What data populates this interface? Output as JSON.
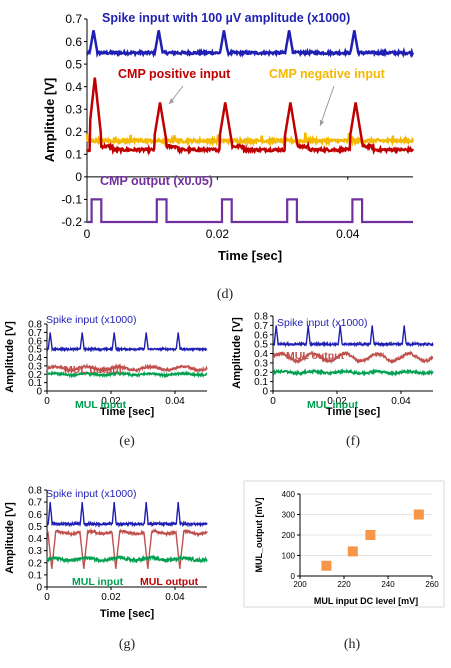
{
  "chart_data": [
    {
      "id": "d",
      "caption": "(d)",
      "type": "line",
      "xlabel": "Time [sec]",
      "ylabel": "Amplitude [V]",
      "xlim": [
        0,
        0.05
      ],
      "ylim": [
        -0.2,
        0.7
      ],
      "xticks": [
        "0",
        "0.02",
        "0.04"
      ],
      "yticks": [
        "0.7",
        "0.6",
        "0.5",
        "0.4",
        "0.3",
        "0.2",
        "0.1",
        "0",
        "-0.1",
        "-0.2"
      ],
      "grid": false,
      "spike_times": [
        0.001,
        0.011,
        0.021,
        0.031,
        0.041
      ],
      "annotations": [
        {
          "text": "Spike input with 100 µV amplitude (x1000)",
          "color": "#1f1fb4"
        },
        {
          "text": "CMP positive input",
          "color": "#c00000"
        },
        {
          "text": "CMP negative input",
          "color": "#f5b800"
        },
        {
          "text": "CMP output (x0.05)",
          "color": "#7030a0"
        }
      ],
      "series": [
        {
          "name": "Spike input with 100 µV amplitude (x1000)",
          "color": "#1f1fb4",
          "baseline": 0.55,
          "peak": 0.65
        },
        {
          "name": "CMP positive input",
          "color": "#c00000",
          "baseline": 0.12,
          "peak_first": 0.44,
          "peak": 0.33
        },
        {
          "name": "CMP negative input",
          "color": "#f5b800",
          "baseline": 0.16
        },
        {
          "name": "CMP output (x0.05)",
          "color": "#7030a0",
          "low": -0.2,
          "high": -0.1
        }
      ]
    },
    {
      "id": "e",
      "caption": "(e)",
      "type": "line",
      "xlabel": "Time [sec]",
      "ylabel": "Amplitude [V]",
      "xlim": [
        0,
        0.05
      ],
      "ylim": [
        0,
        0.8
      ],
      "xticks": [
        "0",
        "0.02",
        "0.04"
      ],
      "yticks": [
        "0.8",
        "0.7",
        "0.6",
        "0.5",
        "0.4",
        "0.3",
        "0.2",
        "0.1",
        "0"
      ],
      "spike_times": [
        0.001,
        0.011,
        0.021,
        0.031,
        0.041
      ],
      "annotations": [
        {
          "text": "Spike input (x1000)",
          "color": "#1f1fb4"
        },
        {
          "text": "MUL output",
          "color": "#c0504d"
        },
        {
          "text": "MUL input",
          "color": "#00a050"
        }
      ],
      "series": [
        {
          "name": "Spike input (x1000)",
          "color": "#1f1fb4",
          "baseline": 0.5,
          "peak": 0.7
        },
        {
          "name": "MUL output",
          "color": "#c0504d",
          "baseline": 0.27
        },
        {
          "name": "MUL input",
          "color": "#00a050",
          "baseline": 0.2
        }
      ]
    },
    {
      "id": "f",
      "caption": "(f)",
      "type": "line",
      "xlabel": "Time [sec]",
      "ylabel": "Amplitude [V]",
      "xlim": [
        0,
        0.05
      ],
      "ylim": [
        0,
        0.8
      ],
      "xticks": [
        "0",
        "0.02",
        "0.04"
      ],
      "yticks": [
        "0.8",
        "0.7",
        "0.6",
        "0.5",
        "0.4",
        "0.3",
        "0.2",
        "0.1",
        "0"
      ],
      "spike_times": [
        0.001,
        0.011,
        0.021,
        0.031,
        0.041
      ],
      "annotations": [
        {
          "text": "Spike input (x1000)",
          "color": "#1f1fb4"
        },
        {
          "text": "MUL output",
          "color": "#c0504d"
        },
        {
          "text": "MUL input",
          "color": "#00a050"
        }
      ],
      "series": [
        {
          "name": "Spike input (x1000)",
          "color": "#1f1fb4",
          "baseline": 0.5,
          "peak": 0.7
        },
        {
          "name": "MUL output",
          "color": "#c0504d",
          "baseline": 0.36
        },
        {
          "name": "MUL input",
          "color": "#00a050",
          "baseline": 0.2
        }
      ]
    },
    {
      "id": "g",
      "caption": "(g)",
      "type": "line",
      "xlabel": "Time [sec]",
      "ylabel": "Amplitude [V]",
      "xlim": [
        0,
        0.05
      ],
      "ylim": [
        0,
        0.8
      ],
      "xticks": [
        "0",
        "0.02",
        "0.04"
      ],
      "yticks": [
        "0.8",
        "0.7",
        "0.6",
        "0.5",
        "0.4",
        "0.3",
        "0.2",
        "0.1",
        "0"
      ],
      "spike_times": [
        0.001,
        0.011,
        0.021,
        0.031,
        0.041
      ],
      "annotations": [
        {
          "text": "Spike input (x1000)",
          "color": "#1f1fb4"
        },
        {
          "text": "MUL input",
          "color": "#00a050"
        },
        {
          "text": "MUL output",
          "color": "#c00000"
        }
      ],
      "series": [
        {
          "name": "Spike input (x1000)",
          "color": "#1f1fb4",
          "baseline": 0.52,
          "peak": 0.7
        },
        {
          "name": "MUL output",
          "color": "#c0504d",
          "baseline": 0.45,
          "dip": 0.15
        },
        {
          "name": "MUL input",
          "color": "#00a050",
          "baseline": 0.23
        }
      ]
    },
    {
      "id": "h",
      "caption": "(h)",
      "type": "scatter",
      "xlabel": "MUL input DC level [mV]",
      "ylabel": "MUL_output [mV]",
      "xlim": [
        200,
        260
      ],
      "ylim": [
        0,
        400
      ],
      "xticks": [
        "200",
        "220",
        "240",
        "260"
      ],
      "yticks": [
        "400",
        "300",
        "200",
        "100",
        "0"
      ],
      "marker_color": "#f79646",
      "x": [
        212,
        224,
        232,
        254
      ],
      "y": [
        50,
        120,
        200,
        300
      ]
    }
  ]
}
